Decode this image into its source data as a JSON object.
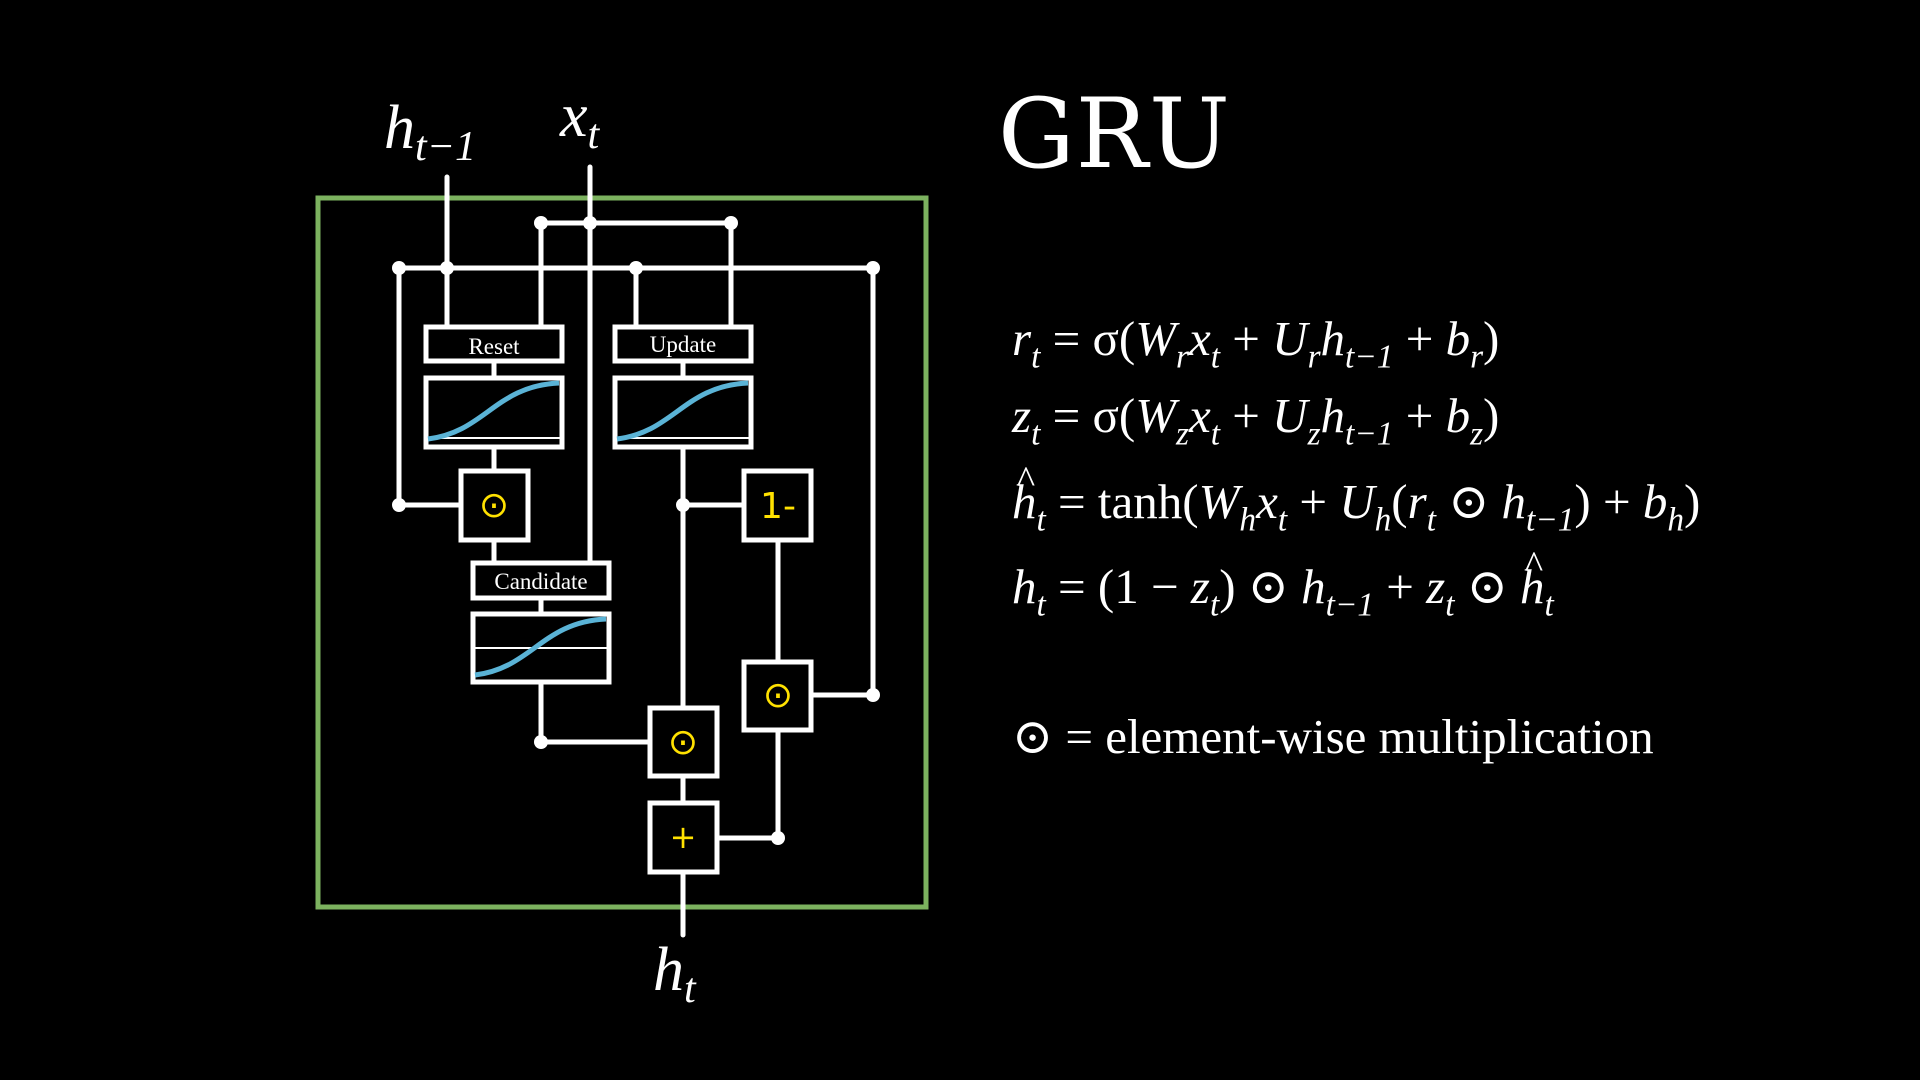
{
  "title": "GRU",
  "colors": {
    "background": "#000000",
    "border": "#7cb25f",
    "wire": "#ffffff",
    "operator": "#ffe100",
    "curve": "#5ab3d6"
  },
  "diagram": {
    "inputs": {
      "hidden_prev": "h",
      "hidden_prev_sub": "t−1",
      "input": "x",
      "input_sub": "t"
    },
    "output": {
      "hidden": "h",
      "hidden_sub": "t"
    },
    "gates": {
      "reset": "Reset",
      "update": "Update",
      "candidate": "Candidate"
    },
    "operators": {
      "reset_mul": "⊙",
      "one_minus": "1-",
      "prev_mul": "⊙",
      "cand_mul": "⊙",
      "add": "+"
    }
  },
  "equations": {
    "reset": {
      "lhs": "r",
      "lhs_sub": "t",
      "eq": "=",
      "fn": "σ(",
      "w": "W",
      "w_sub": "r",
      "x": "x",
      "x_sub": "t",
      "plus1": "+",
      "u": "U",
      "u_sub": "r",
      "h": "h",
      "h_sub": "t−1",
      "plus2": "+",
      "b": "b",
      "b_sub": "r",
      "close": ")"
    },
    "update": {
      "lhs": "z",
      "lhs_sub": "t",
      "eq": "=",
      "fn": "σ(",
      "w": "W",
      "w_sub": "z",
      "x": "x",
      "x_sub": "t",
      "plus1": "+",
      "u": "U",
      "u_sub": "z",
      "h": "h",
      "h_sub": "t−1",
      "plus2": "+",
      "b": "b",
      "b_sub": "z",
      "close": ")"
    },
    "candidate": {
      "lhs": "h",
      "lhs_sub": "t",
      "eq": "=",
      "fn": "tanh(",
      "w": "W",
      "w_sub": "h",
      "x": "x",
      "x_sub": "t",
      "plus1": "+",
      "u": "U",
      "u_sub": "h",
      "open": "(",
      "r": "r",
      "r_sub": "t",
      "odot": "⊙",
      "h": "h",
      "h_sub": "t−1",
      "close_inner": ")",
      "plus2": "+",
      "b": "b",
      "b_sub": "h",
      "close": ")"
    },
    "output": {
      "lhs": "h",
      "lhs_sub": "t",
      "eq": "=",
      "open": "(1 −",
      "z": "z",
      "z_sub": "t",
      "close": ")",
      "odot1": "⊙",
      "h": "h",
      "h_sub": "t−1",
      "plus": "+",
      "z2": "z",
      "z2_sub": "t",
      "odot2": "⊙",
      "hhat": "h",
      "hhat_sub": "t"
    },
    "legend": {
      "symbol": "⊙",
      "text": "= element-wise multiplication"
    }
  }
}
